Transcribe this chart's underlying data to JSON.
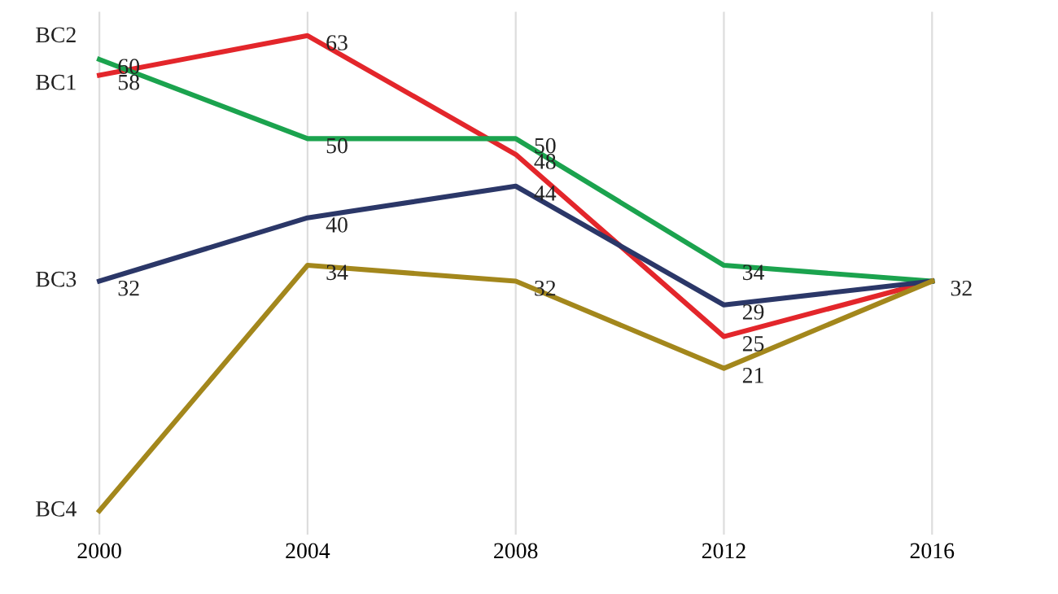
{
  "chart_data": {
    "type": "line",
    "categories": [
      "2000",
      "2004",
      "2008",
      "2012",
      "2016"
    ],
    "grid": "x",
    "legend": false,
    "marker": "none",
    "line_style": "solid",
    "series": [
      {
        "name": "BC1",
        "color": "#e3262b",
        "values": [
          58,
          63,
          48,
          25,
          32
        ],
        "value_labels": [
          "58",
          "63",
          "48",
          "25",
          "32"
        ]
      },
      {
        "name": "BC2",
        "color": "#1ba34e",
        "values": [
          60,
          50,
          50,
          34,
          32
        ],
        "value_labels": [
          "60",
          "50",
          "50",
          "34",
          null
        ]
      },
      {
        "name": "BC3",
        "color": "#2b3768",
        "values": [
          32,
          40,
          44,
          29,
          32
        ],
        "value_labels": [
          "32",
          "40",
          "44",
          "29",
          null
        ]
      },
      {
        "name": "BC4",
        "color": "#a3871c",
        "values": [
          3,
          34,
          32,
          21,
          32
        ],
        "value_labels": [
          null,
          "34",
          "32",
          "21",
          null
        ]
      }
    ]
  }
}
